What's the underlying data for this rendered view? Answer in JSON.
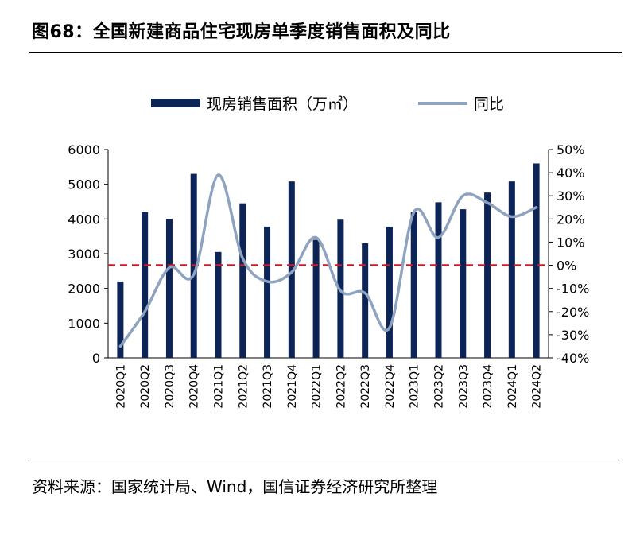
{
  "figure_title": "图68：全国新建商品住宅现房单季度销售面积及同比",
  "source_note": "资料来源：国家统计局、Wind，国信证券经济研究所整理",
  "colors": {
    "bar": "#0d2457",
    "line": "#8ea3c0",
    "zero_line": "#c0202a"
  },
  "chart_data": {
    "type": "bar+line",
    "categories": [
      "2020Q1",
      "2020Q2",
      "2020Q3",
      "2020Q4",
      "2021Q1",
      "2021Q2",
      "2021Q3",
      "2021Q4",
      "2022Q1",
      "2022Q2",
      "2022Q3",
      "2022Q4",
      "2023Q1",
      "2023Q2",
      "2023Q3",
      "2023Q4",
      "2024Q1",
      "2024Q2"
    ],
    "series": [
      {
        "name": "现房销售面积（万㎡）",
        "type": "bar",
        "axis": "left",
        "values": [
          2200,
          4200,
          4000,
          5300,
          3050,
          4450,
          3780,
          5080,
          3400,
          3980,
          3300,
          3780,
          4200,
          4480,
          4280,
          4760,
          5080,
          5600
        ]
      },
      {
        "name": "同比",
        "type": "line",
        "axis": "right",
        "values": [
          -35,
          -20,
          -1,
          -4,
          39,
          3,
          -7,
          -3,
          12,
          -11,
          -12,
          -27,
          23,
          12,
          30,
          27,
          21,
          25
        ]
      }
    ],
    "left_axis": {
      "min": 0,
      "max": 6000,
      "ticks": [
        "0",
        "1000",
        "2000",
        "3000",
        "4000",
        "5000",
        "6000"
      ]
    },
    "right_axis": {
      "min": -40,
      "max": 50,
      "ticks": [
        "-40%",
        "-30%",
        "-20%",
        "-10%",
        "0%",
        "10%",
        "20%",
        "30%",
        "40%",
        "50%"
      ]
    },
    "reference_line": {
      "axis": "right",
      "value": 0,
      "style": "dashed"
    },
    "legend_position": "top"
  }
}
